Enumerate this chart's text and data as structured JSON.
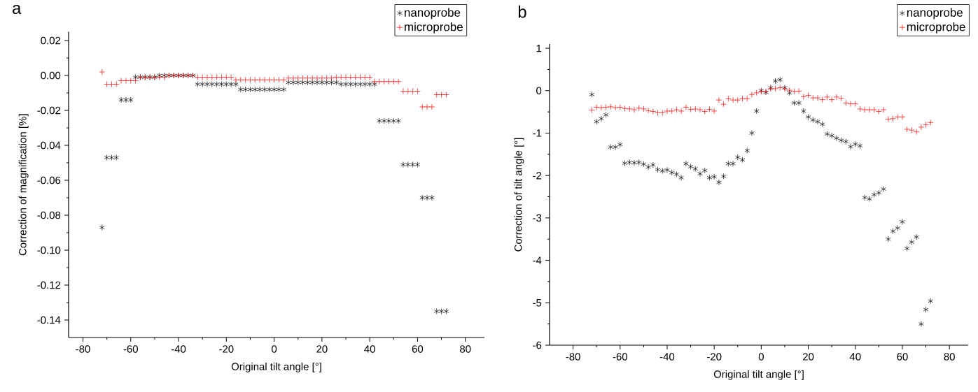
{
  "chart_data": [
    {
      "type": "scatter",
      "annotations": [
        "a"
      ],
      "xlabel": "Original tilt angle [°]",
      "ylabel": "Correction of magnification [%]",
      "xlim": [
        -86,
        88
      ],
      "ylim": [
        -0.15,
        0.025
      ],
      "xticks": [
        -80,
        -60,
        -40,
        -20,
        0,
        20,
        40,
        60,
        80
      ],
      "yticks": [
        {
          "value": 0.02,
          "label": "0.02"
        },
        {
          "value": 0,
          "label": "0.00"
        },
        {
          "value": -0.02,
          "label": "-0.02"
        },
        {
          "value": -0.04,
          "label": "-0.04"
        },
        {
          "value": -0.06,
          "label": "-0.06"
        },
        {
          "value": -0.08,
          "label": "-0.08"
        },
        {
          "value": -0.1,
          "label": "-0.10"
        },
        {
          "value": -0.12,
          "label": "-0.12"
        },
        {
          "value": -0.14,
          "label": "-0.14"
        }
      ],
      "legend": "top right",
      "grid": false,
      "marker": "cross",
      "x": [
        -72,
        -70,
        -68,
        -66,
        -64,
        -62,
        -60,
        -58,
        -56,
        -54,
        -52,
        -50,
        -48,
        -46,
        -44,
        -42,
        -40,
        -38,
        -36,
        -34,
        -32,
        -30,
        -28,
        -26,
        -24,
        -22,
        -20,
        -18,
        -16,
        -14,
        -12,
        -10,
        -8,
        -6,
        -4,
        -2,
        0,
        2,
        4,
        6,
        8,
        10,
        12,
        14,
        16,
        18,
        20,
        22,
        24,
        26,
        28,
        30,
        32,
        34,
        36,
        38,
        40,
        42,
        44,
        46,
        48,
        50,
        52,
        54,
        56,
        58,
        60,
        62,
        64,
        66,
        68,
        70,
        72
      ],
      "series": [
        {
          "name": "nanoprobe",
          "color": "#000000",
          "values": [
            -0.087,
            -0.047,
            -0.047,
            -0.047,
            -0.014,
            -0.014,
            -0.014,
            -0.001,
            -0.001,
            -0.001,
            -0.001,
            -0.001,
            0,
            0,
            0,
            0,
            0,
            0,
            0,
            0,
            -0.005,
            -0.005,
            -0.005,
            -0.005,
            -0.005,
            -0.005,
            -0.005,
            -0.005,
            -0.005,
            -0.008,
            -0.008,
            -0.008,
            -0.008,
            -0.008,
            -0.008,
            -0.008,
            -0.008,
            -0.008,
            -0.008,
            -0.004,
            -0.004,
            -0.004,
            -0.004,
            -0.004,
            -0.004,
            -0.004,
            -0.004,
            -0.004,
            -0.004,
            -0.004,
            -0.005,
            -0.005,
            -0.005,
            -0.005,
            -0.005,
            -0.005,
            -0.005,
            -0.005,
            -0.026,
            -0.026,
            -0.026,
            -0.026,
            -0.026,
            -0.051,
            -0.051,
            -0.051,
            -0.051,
            -0.07,
            -0.07,
            -0.07,
            -0.135,
            -0.135,
            -0.135
          ]
        },
        {
          "name": "microprobe",
          "color": "#ff0000",
          "values": [
            0.002,
            -0.005,
            -0.005,
            -0.005,
            -0.003,
            -0.003,
            -0.003,
            -0.003,
            -0.001,
            -0.001,
            -0.001,
            -0.001,
            -0.001,
            -0.001,
            0,
            0,
            0,
            0,
            0,
            0,
            -0.001,
            -0.001,
            -0.001,
            -0.001,
            -0.001,
            -0.001,
            -0.001,
            -0.001,
            -0.0025,
            -0.0025,
            -0.0025,
            -0.0025,
            -0.0025,
            -0.0025,
            -0.0025,
            -0.0025,
            -0.0025,
            -0.0025,
            -0.0025,
            -0.0015,
            -0.0015,
            -0.0015,
            -0.0015,
            -0.0015,
            -0.0015,
            -0.0015,
            -0.0015,
            -0.0015,
            -0.0015,
            -0.001,
            -0.001,
            -0.001,
            -0.001,
            -0.001,
            -0.001,
            -0.001,
            -0.001,
            -0.0035,
            -0.0035,
            -0.0035,
            -0.0035,
            -0.0035,
            -0.0035,
            -0.009,
            -0.009,
            -0.009,
            -0.009,
            -0.018,
            -0.018,
            -0.018,
            -0.011,
            -0.011,
            -0.011
          ]
        }
      ]
    },
    {
      "type": "scatter",
      "annotations": [
        "b"
      ],
      "xlabel": "Original tilt angle [°]",
      "ylabel": "Correction of tilt angle [°]",
      "xlim": [
        -90,
        88
      ],
      "ylim": [
        -6,
        1.1
      ],
      "xticks": [
        -80,
        -60,
        -40,
        -20,
        0,
        20,
        40,
        60,
        80
      ],
      "yticks": [
        -6,
        -5,
        -4,
        -3,
        -2,
        -1,
        0,
        1
      ],
      "legend": "top right",
      "grid": false,
      "marker": "cross",
      "x": [
        -72,
        -70,
        -68,
        -66,
        -64,
        -62,
        -60,
        -58,
        -56,
        -54,
        -52,
        -50,
        -48,
        -46,
        -44,
        -42,
        -40,
        -38,
        -36,
        -34,
        -32,
        -30,
        -28,
        -26,
        -24,
        -22,
        -20,
        -18,
        -16,
        -14,
        -12,
        -10,
        -8,
        -6,
        -4,
        -2,
        0,
        2,
        4,
        6,
        8,
        10,
        12,
        14,
        16,
        18,
        20,
        22,
        24,
        26,
        28,
        30,
        32,
        34,
        36,
        38,
        40,
        42,
        44,
        46,
        48,
        50,
        52,
        54,
        56,
        58,
        60,
        62,
        64,
        66,
        68,
        70,
        72
      ],
      "series": [
        {
          "name": "nanoprobe",
          "color": "#000000",
          "values": [
            -0.09,
            -0.73,
            -0.66,
            -0.57,
            -1.33,
            -1.33,
            -1.27,
            -1.71,
            -1.69,
            -1.7,
            -1.69,
            -1.73,
            -1.8,
            -1.75,
            -1.86,
            -1.89,
            -1.87,
            -1.93,
            -1.97,
            -2.05,
            -1.72,
            -1.79,
            -1.84,
            -1.96,
            -1.88,
            -2.05,
            -2.03,
            -2.16,
            -2.02,
            -1.72,
            -1.72,
            -1.57,
            -1.63,
            -1.41,
            -1.0,
            -0.48,
            0.0,
            -0.04,
            0.07,
            0.23,
            0.26,
            0.07,
            -0.05,
            -0.29,
            -0.29,
            -0.48,
            -0.62,
            -0.69,
            -0.73,
            -0.79,
            -1.02,
            -1.06,
            -1.12,
            -1.17,
            -1.2,
            -1.32,
            -1.26,
            -1.3,
            -2.52,
            -2.55,
            -2.45,
            -2.41,
            -2.32,
            -3.5,
            -3.31,
            -3.24,
            -3.09,
            -3.72,
            -3.57,
            -3.45,
            -5.5,
            -5.16,
            -4.96
          ]
        },
        {
          "name": "microprobe",
          "color": "#ff0000",
          "values": [
            -0.46,
            -0.39,
            -0.4,
            -0.39,
            -0.38,
            -0.4,
            -0.39,
            -0.42,
            -0.43,
            -0.45,
            -0.41,
            -0.43,
            -0.47,
            -0.49,
            -0.52,
            -0.52,
            -0.48,
            -0.48,
            -0.45,
            -0.48,
            -0.39,
            -0.44,
            -0.43,
            -0.45,
            -0.49,
            -0.44,
            -0.48,
            -0.22,
            -0.32,
            -0.19,
            -0.22,
            -0.22,
            -0.19,
            -0.19,
            -0.09,
            -0.05,
            -0.02,
            -0.02,
            0.04,
            0.05,
            0.07,
            0.04,
            0.01,
            -0.02,
            -0.01,
            -0.14,
            -0.11,
            -0.17,
            -0.17,
            -0.21,
            -0.15,
            -0.21,
            -0.15,
            -0.18,
            -0.29,
            -0.31,
            -0.31,
            -0.43,
            -0.45,
            -0.45,
            -0.45,
            -0.49,
            -0.45,
            -0.67,
            -0.66,
            -0.62,
            -0.62,
            -0.91,
            -0.93,
            -0.97,
            -0.86,
            -0.8,
            -0.75
          ]
        }
      ]
    }
  ]
}
